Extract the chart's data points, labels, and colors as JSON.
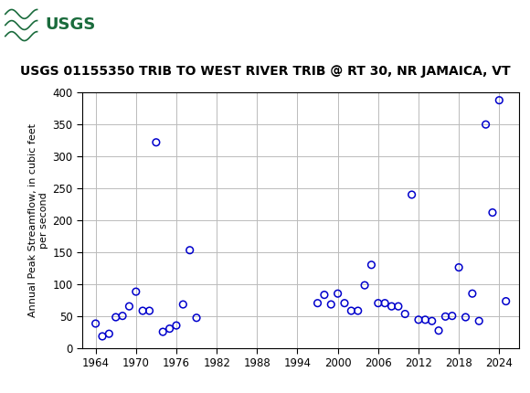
{
  "title": "USGS 01155350 TRIB TO WEST RIVER TRIB @ RT 30, NR JAMAICA, VT",
  "ylabel": "Annual Peak Streamflow, in cubic feet\nper second",
  "xlim": [
    1962,
    2027
  ],
  "ylim": [
    0,
    400
  ],
  "xticks": [
    1964,
    1970,
    1976,
    1982,
    1988,
    1994,
    2000,
    2006,
    2012,
    2018,
    2024
  ],
  "yticks": [
    0,
    50,
    100,
    150,
    200,
    250,
    300,
    350,
    400
  ],
  "years": [
    1964,
    1965,
    1966,
    1967,
    1968,
    1969,
    1970,
    1971,
    1972,
    1973,
    1974,
    1975,
    1976,
    1977,
    1978,
    1979,
    1997,
    1998,
    1999,
    2000,
    2001,
    2002,
    2003,
    2004,
    2005,
    2006,
    2007,
    2008,
    2009,
    2010,
    2011,
    2012,
    2013,
    2014,
    2015,
    2016,
    2017,
    2018,
    2019,
    2020,
    2021,
    2022,
    2023,
    2024,
    2025
  ],
  "flows": [
    38,
    18,
    22,
    48,
    50,
    65,
    88,
    58,
    58,
    322,
    25,
    30,
    35,
    68,
    153,
    47,
    70,
    83,
    68,
    85,
    70,
    58,
    58,
    98,
    130,
    70,
    70,
    65,
    65,
    53,
    240,
    44,
    44,
    42,
    27,
    49,
    50,
    126,
    48,
    85,
    42,
    350,
    212,
    388,
    73
  ],
  "marker_color": "#0000CC",
  "marker_size": 5.5,
  "marker_linewidth": 1.1,
  "grid_color": "#bbbbbb",
  "bg_color": "#ffffff",
  "header_bg": "#1a6b3c",
  "header_text_color": "#ffffff",
  "title_fontsize": 10,
  "ylabel_fontsize": 8,
  "tick_fontsize": 8.5
}
